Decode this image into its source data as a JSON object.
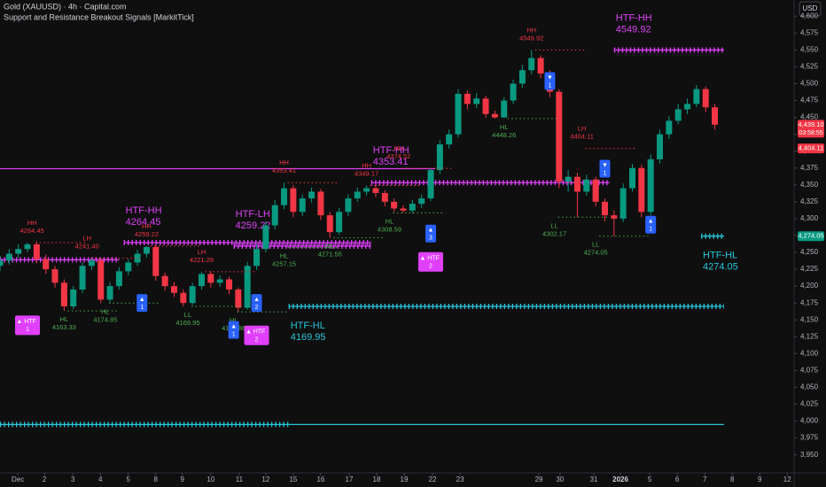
{
  "header": {
    "symbol": "Gold (XAUUSD) · 4h · Capital.com",
    "indicator": "Support and Resistance Breakout Signals [MarkitTick]",
    "currency": "USD"
  },
  "chart_data": {
    "type": "candlestick",
    "up_color": "#089981",
    "down_color": "#f23645",
    "grid": false,
    "xlim": [
      0,
      173.3
    ],
    "ylim": [
      3922,
      4624
    ],
    "yticks": [
      {
        "value": 3950,
        "label": "3,950"
      },
      {
        "value": 3975,
        "label": "3,975"
      },
      {
        "value": 4000,
        "label": "4,000"
      },
      {
        "value": 4025,
        "label": "4,025"
      },
      {
        "value": 4050,
        "label": "4,050"
      },
      {
        "value": 4075,
        "label": "4,075"
      },
      {
        "value": 4100,
        "label": "4,100"
      },
      {
        "value": 4125,
        "label": "4,125"
      },
      {
        "value": 4150,
        "label": "4,150"
      },
      {
        "value": 4175,
        "label": "4,175"
      },
      {
        "value": 4200,
        "label": "4,200"
      },
      {
        "value": 4225,
        "label": "4,225"
      },
      {
        "value": 4250,
        "label": "4,250"
      },
      {
        "value": 4275,
        "label": "4,275"
      },
      {
        "value": 4300,
        "label": "4,300"
      },
      {
        "value": 4325,
        "label": "4,325"
      },
      {
        "value": 4350,
        "label": "4,350"
      },
      {
        "value": 4375,
        "label": "4,375"
      },
      {
        "value": 4400,
        "label": "4,400"
      },
      {
        "value": 4425,
        "label": "4,425"
      },
      {
        "value": 4450,
        "label": "4,450"
      },
      {
        "value": 4475,
        "label": "4,475"
      },
      {
        "value": 4500,
        "label": "4,500"
      },
      {
        "value": 4525,
        "label": "4,525"
      },
      {
        "value": 4550,
        "label": "4,550"
      },
      {
        "value": 4575,
        "label": "4,575"
      },
      {
        "value": 4600,
        "label": "4,600"
      }
    ],
    "xticks": [
      {
        "value": 3.9,
        "label": "Dec"
      },
      {
        "value": 9.7,
        "label": "2"
      },
      {
        "value": 15.9,
        "label": "3"
      },
      {
        "value": 21.9,
        "label": "4"
      },
      {
        "value": 28,
        "label": "5"
      },
      {
        "value": 34,
        "label": "8"
      },
      {
        "value": 39.8,
        "label": "9"
      },
      {
        "value": 46,
        "label": "10"
      },
      {
        "value": 52.2,
        "label": "11"
      },
      {
        "value": 58,
        "label": "12"
      },
      {
        "value": 64,
        "label": "15"
      },
      {
        "value": 70,
        "label": "16"
      },
      {
        "value": 76.2,
        "label": "17"
      },
      {
        "value": 82.2,
        "label": "18"
      },
      {
        "value": 88.2,
        "label": "19"
      },
      {
        "value": 94.4,
        "label": "22"
      },
      {
        "value": 100.4,
        "label": "23"
      },
      {
        "value": 117.6,
        "label": "29"
      },
      {
        "value": 122.2,
        "label": "30"
      },
      {
        "value": 129.6,
        "label": "31"
      },
      {
        "value": 135.4,
        "label": "2026",
        "bold": true
      },
      {
        "value": 141.8,
        "label": "5"
      },
      {
        "value": 147.8,
        "label": "6"
      },
      {
        "value": 153.8,
        "label": "7"
      },
      {
        "value": 159.8,
        "label": "8"
      },
      {
        "value": 165.8,
        "label": "9"
      },
      {
        "value": 171.8,
        "label": "12"
      }
    ],
    "x": [
      0,
      2,
      4,
      6,
      8,
      10,
      12,
      14,
      16,
      18,
      20,
      22,
      24,
      26,
      28,
      30,
      32,
      34,
      36,
      38,
      40,
      42,
      44,
      46,
      48,
      50,
      52,
      54,
      56,
      58,
      60,
      62,
      64,
      66,
      68,
      70,
      72,
      74,
      76,
      78,
      80,
      82,
      84,
      86,
      88,
      90,
      92,
      94,
      96,
      98,
      100,
      102,
      104,
      106,
      108,
      110,
      112,
      114,
      116,
      118,
      120,
      122,
      124,
      126,
      128,
      130,
      132,
      134,
      136,
      138,
      140,
      142,
      144,
      146,
      148,
      150,
      152,
      154,
      156
    ],
    "open": [
      4230,
      4238,
      4248,
      4255,
      4262,
      4240,
      4225,
      4205,
      4170,
      4195,
      4230,
      4238,
      4180,
      4200,
      4222,
      4235,
      4248,
      4258,
      4215,
      4200,
      4190,
      4175,
      4200,
      4218,
      4205,
      4210,
      4195,
      4168,
      4230,
      4255,
      4290,
      4320,
      4345,
      4310,
      4330,
      4340,
      4305,
      4280,
      4310,
      4330,
      4340,
      4345,
      4338,
      4325,
      4315,
      4312,
      4322,
      4330,
      4372,
      4410,
      4425,
      4485,
      4470,
      4478,
      4455,
      4450,
      4475,
      4500,
      4520,
      4538,
      4515,
      4488,
      4355,
      4362,
      4340,
      4358,
      4325,
      4305,
      4300,
      4345,
      4375,
      4310,
      4388,
      4425,
      4445,
      4462,
      4470,
      4492,
      4465
    ],
    "high": [
      4245,
      4255,
      4262,
      4264.45,
      4266,
      4247,
      4230,
      4210,
      4200,
      4236,
      4241.4,
      4242,
      4206,
      4228,
      4240,
      4254,
      4259.22,
      4262,
      4220,
      4206,
      4195,
      4205,
      4221.29,
      4222,
      4216,
      4214,
      4198,
      4236,
      4262,
      4296,
      4328,
      4353.41,
      4350,
      4336,
      4346,
      4344,
      4310,
      4316,
      4336,
      4346,
      4349.17,
      4350,
      4342,
      4330,
      4320,
      4328,
      4336,
      4374.52,
      4416,
      4432,
      4492,
      4490,
      4486,
      4482,
      4460,
      4480,
      4506,
      4528,
      4549.92,
      4542,
      4520,
      4492,
      4372,
      4368,
      4365,
      4362,
      4330,
      4312,
      4352,
      4381,
      4380,
      4395,
      4432,
      4452,
      4470,
      4478,
      4498,
      4496,
      4470
    ],
    "low": [
      4222,
      4232,
      4242,
      4250,
      4234,
      4218,
      4198,
      4163.33,
      4166,
      4190,
      4224,
      4174.85,
      4176,
      4195,
      4216,
      4230,
      4242,
      4208,
      4193,
      4184,
      4169.95,
      4172,
      4195,
      4198,
      4199,
      4188,
      4161.86,
      4165,
      4224,
      4250,
      4284,
      4314,
      4302,
      4304,
      4324,
      4298,
      4271.55,
      4276,
      4304,
      4325,
      4334,
      4332,
      4318,
      4310,
      4308.59,
      4308,
      4316,
      4326,
      4366,
      4404,
      4420,
      4462,
      4464,
      4449,
      4448.26,
      4449,
      4470,
      4494,
      4514,
      4508,
      4480,
      4345,
      4340,
      4302.17,
      4334,
      4318,
      4296,
      4274.05,
      4295,
      4340,
      4302,
      4305,
      4382,
      4418,
      4440,
      4455,
      4465,
      4458,
      4432
    ],
    "close": [
      4238,
      4248,
      4255,
      4262,
      4240,
      4225,
      4205,
      4170,
      4195,
      4230,
      4238,
      4180,
      4200,
      4222,
      4235,
      4248,
      4258,
      4215,
      4200,
      4190,
      4175,
      4200,
      4218,
      4205,
      4210,
      4195,
      4168,
      4230,
      4255,
      4290,
      4320,
      4345,
      4310,
      4330,
      4340,
      4305,
      4280,
      4310,
      4330,
      4340,
      4345,
      4338,
      4325,
      4315,
      4312,
      4322,
      4330,
      4372,
      4410,
      4425,
      4485,
      4470,
      4478,
      4455,
      4450,
      4475,
      4500,
      4520,
      4538,
      4515,
      4488,
      4355,
      4362,
      4340,
      4358,
      4325,
      4305,
      4300,
      4345,
      4375,
      4310,
      4388,
      4425,
      4445,
      4462,
      4470,
      4492,
      4465,
      4439.1
    ],
    "levels": [
      {
        "value": 4374,
        "from": 0,
        "to": 95,
        "color": "#e040fb",
        "style": "solid"
      },
      {
        "label": "HTF-HH",
        "value": 4353.41,
        "from": 81,
        "to": 133,
        "color": "#e040fb",
        "style": "plus"
      },
      {
        "value": 4239,
        "from": 0,
        "to": 26,
        "color": "#e040fb",
        "style": "plus"
      },
      {
        "label": "HTF-HH",
        "value": 4264.45,
        "from": 27,
        "to": 81,
        "color": "#e040fb",
        "style": "plus"
      },
      {
        "label": "HTF-LH",
        "value": 4259.22,
        "from": 51,
        "to": 81,
        "color": "#e040fb",
        "style": "plus"
      },
      {
        "label": "HTF-HH",
        "value": 4549.92,
        "from": 134,
        "to": 158,
        "color": "#e040fb",
        "style": "plus"
      },
      {
        "label": "HTF-HL",
        "value": 4169.95,
        "from": 63,
        "to": 158,
        "color": "#26c6da",
        "style": "plus"
      },
      {
        "value": 3995,
        "from": 0,
        "to": 63,
        "color": "#26c6da",
        "style": "plus"
      },
      {
        "value": 3995,
        "from": 63,
        "to": 158,
        "color": "#26c6da",
        "style": "solid"
      },
      {
        "label": "HTF-HL",
        "value": 4274.05,
        "from": 153,
        "to": 158,
        "color": "#26c6da",
        "style": "plus"
      }
    ],
    "pivots": [
      {
        "tag": "HH",
        "value": 4264.45,
        "x": 7
      },
      {
        "tag": "LH",
        "value": 4241.4,
        "value_label": "4241.40",
        "x": 19
      },
      {
        "tag": "HL",
        "value": 4163.33,
        "x": 14
      },
      {
        "tag": "HL",
        "value": 4174.85,
        "x": 23
      },
      {
        "tag": "HH",
        "value": 4259.22,
        "x": 32
      },
      {
        "tag": "LH",
        "value": 4221.29,
        "x": 44
      },
      {
        "tag": "LL",
        "value": 4169.95,
        "x": 41
      },
      {
        "tag": "HL",
        "value": 4161.86,
        "x": 51
      },
      {
        "tag": "HH",
        "value": 4353.41,
        "x": 62
      },
      {
        "tag": "HL",
        "value": 4257.15,
        "x": 62
      },
      {
        "tag": "HL",
        "value": 4271.55,
        "x": 72
      },
      {
        "tag": "HH",
        "value": 4349.17,
        "x": 80
      },
      {
        "tag": "HH",
        "value": 4374.52,
        "x": 87
      },
      {
        "tag": "HL",
        "value": 4308.59,
        "x": 85
      },
      {
        "tag": "HL",
        "value": 4448.26,
        "x": 110
      },
      {
        "tag": "HH",
        "value": 4549.92,
        "x": 116
      },
      {
        "tag": "LH",
        "value": 4404.11,
        "x": 127
      },
      {
        "tag": "LL",
        "value": 4302.17,
        "x": 121
      },
      {
        "tag": "LL",
        "value": 4274.05,
        "x": 130
      }
    ],
    "signals": [
      {
        "arrow": "▲",
        "text": "HTF",
        "count": 1,
        "x": 6,
        "y": 4142,
        "color": "#e040fb"
      },
      {
        "arrow": "▲",
        "count": 1,
        "x": 31,
        "y": 4175,
        "color": "#2962ff"
      },
      {
        "arrow": "▲",
        "count": 1,
        "x": 51,
        "y": 4135,
        "color": "#2962ff"
      },
      {
        "arrow": "▲",
        "count": 2,
        "x": 56,
        "y": 4175,
        "color": "#2962ff"
      },
      {
        "arrow": "▲",
        "text": "HTF",
        "count": 2,
        "x": 56,
        "y": 4127,
        "color": "#e040fb"
      },
      {
        "arrow": "▲",
        "count": 3,
        "x": 94,
        "y": 4278,
        "color": "#2962ff"
      },
      {
        "arrow": "▲",
        "text": "HTF",
        "count": 2,
        "x": 94,
        "y": 4236,
        "color": "#e040fb"
      },
      {
        "arrow": "▼",
        "count": 1,
        "x": 120,
        "y": 4504,
        "color": "#2962ff"
      },
      {
        "arrow": "▼",
        "count": 1,
        "x": 132,
        "y": 4374,
        "color": "#2962ff"
      },
      {
        "arrow": "▲",
        "count": 1,
        "x": 142,
        "y": 4291,
        "color": "#2962ff"
      }
    ],
    "price_tags": [
      {
        "value": 4439.1,
        "label": "4,439.10",
        "sub": "03:58:55",
        "color": "#f23645"
      },
      {
        "value": 4404.11,
        "label": "4,404.11",
        "color": "#f23645"
      },
      {
        "value": 4274.05,
        "label": "4,274.05",
        "color": "#089981"
      }
    ]
  }
}
